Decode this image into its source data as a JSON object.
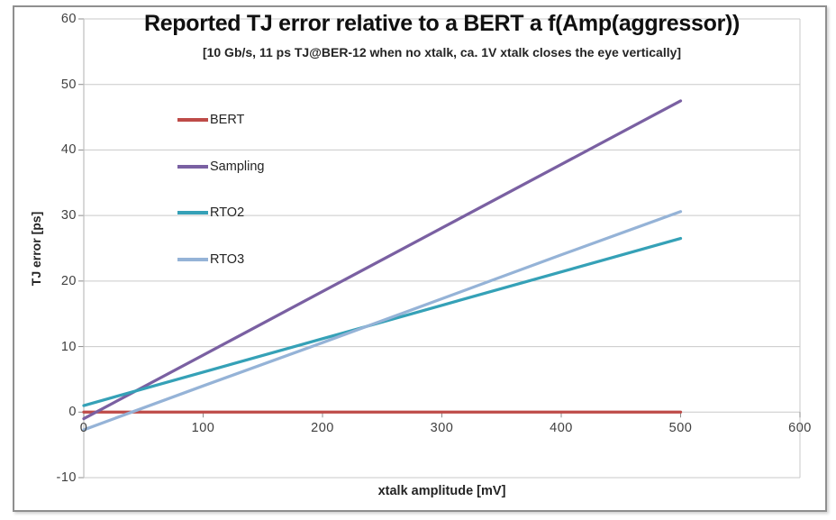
{
  "figure": {
    "background": "#ffffff",
    "border_color": "#8f8f8f"
  },
  "chart_data": {
    "type": "line",
    "title": "Reported TJ error relative to a BERT a f(Amp(aggressor))",
    "subtitle": "[10 Gb/s, 11 ps TJ@BER-12 when no xtalk, ca. 1V xtalk closes the eye vertically]",
    "xlabel": "xtalk amplitude [mV]",
    "ylabel": "TJ error [ps]",
    "xlim": [
      0,
      600
    ],
    "ylim": [
      -10,
      60
    ],
    "x_ticks": [
      0,
      100,
      200,
      300,
      400,
      500,
      600
    ],
    "y_ticks": [
      60,
      50,
      40,
      30,
      20,
      10,
      0,
      -10
    ],
    "grid": "horizontal gridlines every 10 ps",
    "legend_position": "inside plot, upper left",
    "x": [
      0,
      100,
      200,
      300,
      400,
      500
    ],
    "series": [
      {
        "name": "BERT",
        "color": "#be4b48",
        "values": [
          0,
          0,
          0,
          0,
          0,
          0
        ]
      },
      {
        "name": "Sampling",
        "color": "#7a60a2",
        "values": [
          -1,
          8.7,
          18.4,
          28.1,
          37.8,
          47.5
        ]
      },
      {
        "name": "RTO2",
        "color": "#35a1b7",
        "values": [
          1,
          6.1,
          11.2,
          16.3,
          21.4,
          26.5
        ]
      },
      {
        "name": "RTO3",
        "color": "#95b3d7",
        "values": [
          -2.7,
          4.0,
          10.6,
          17.3,
          24.0,
          30.6
        ]
      }
    ],
    "style": {
      "grid_color": "#c9c9c9",
      "axis_color": "#bfbfbf",
      "tick_color": "#8c8c8c",
      "tick_label_color": "#3f3f3f",
      "line_width": 3.25
    }
  }
}
